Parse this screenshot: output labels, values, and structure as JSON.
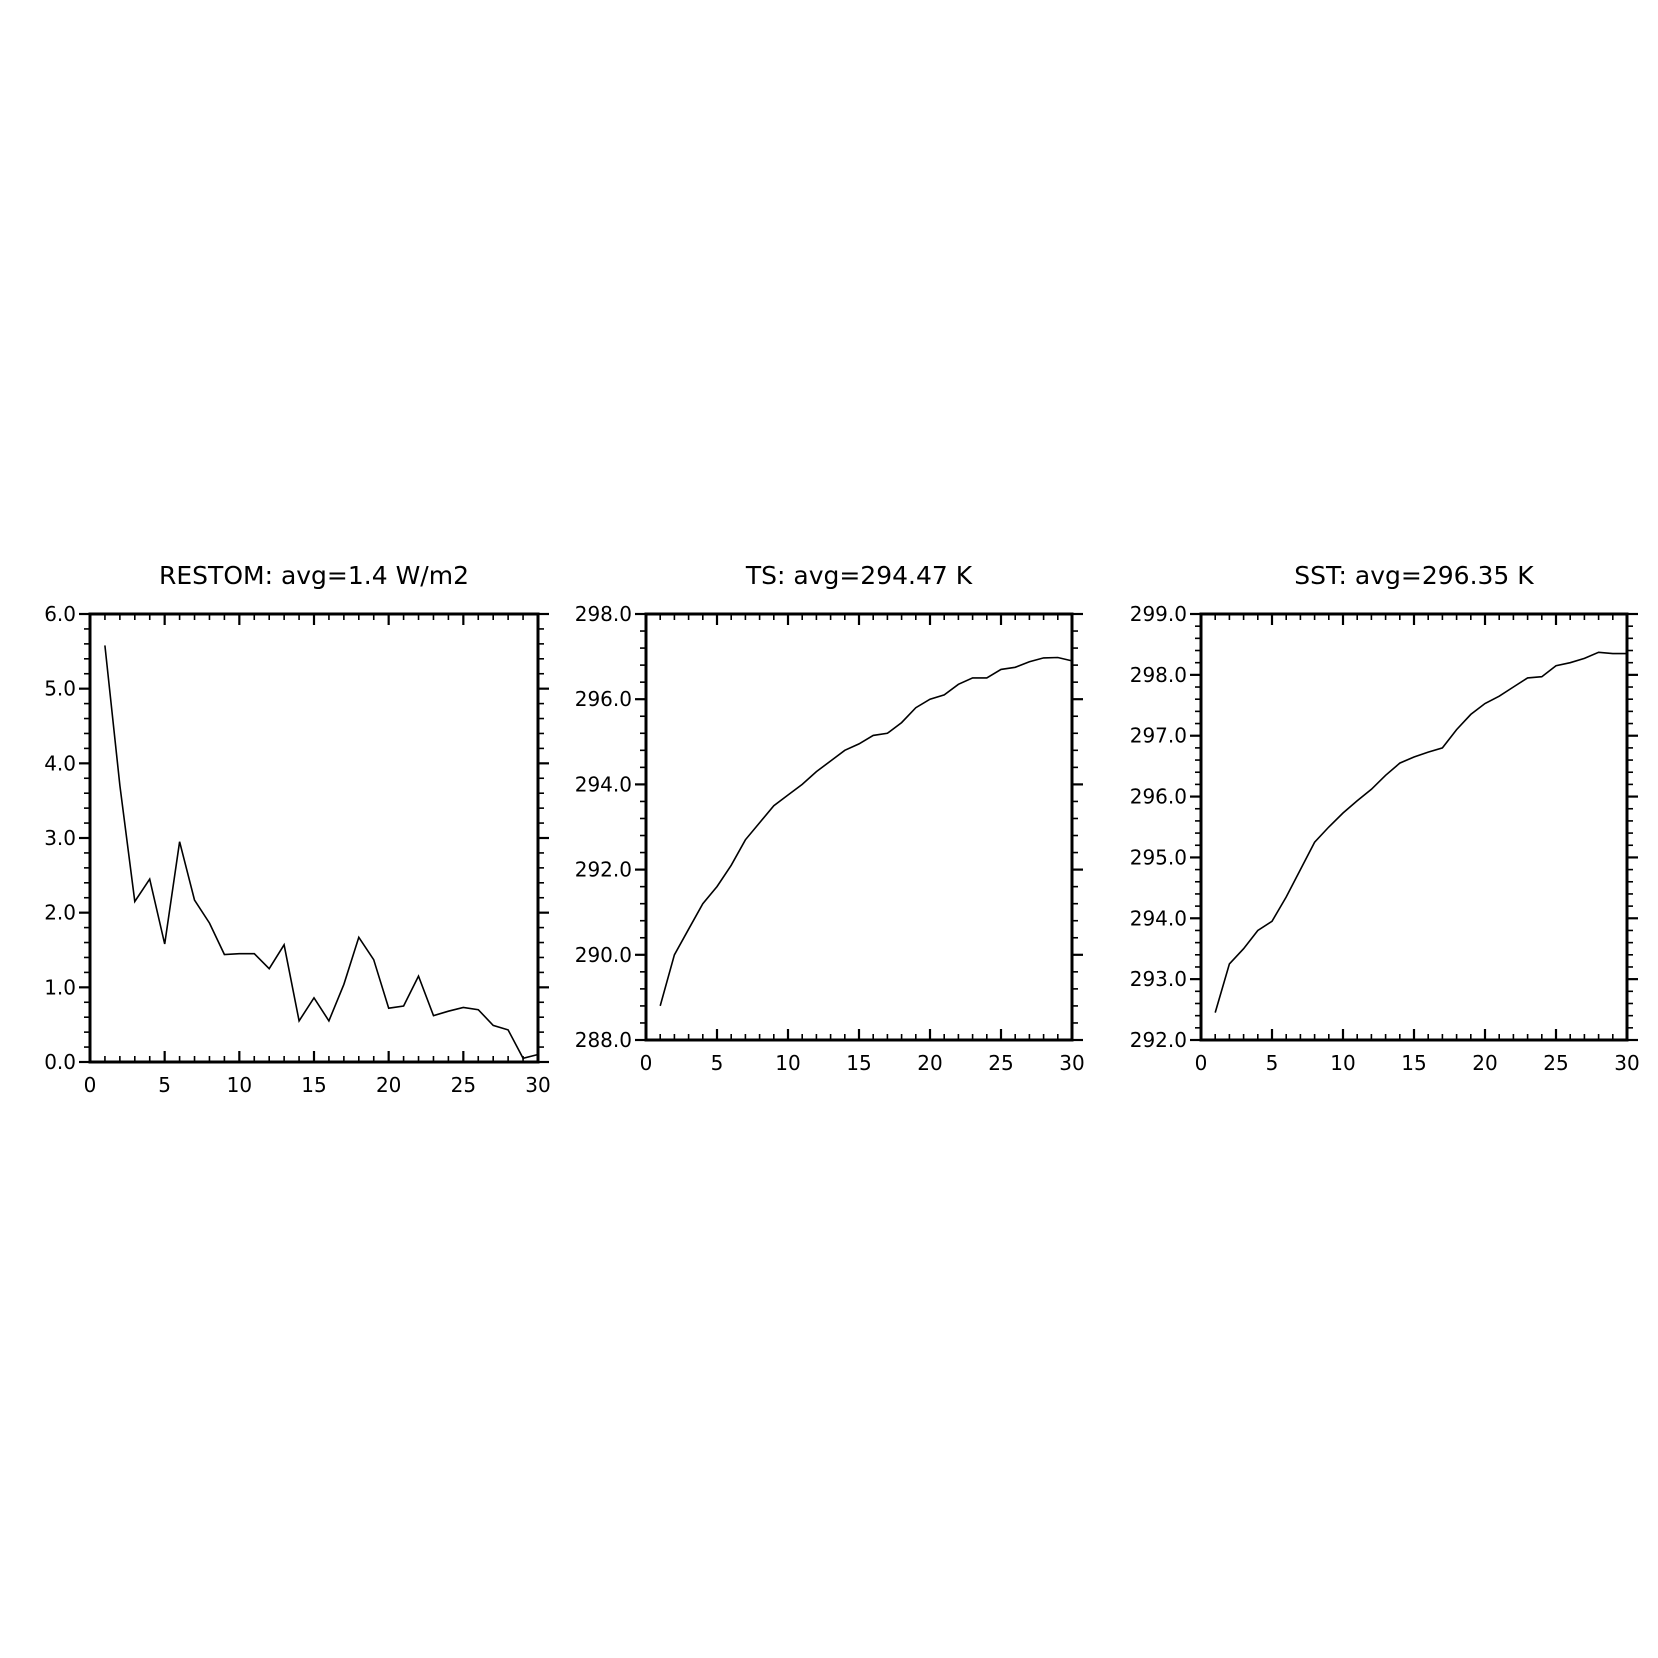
{
  "chart_data": [
    {
      "type": "line",
      "title": "RESTOM: avg=1.4 W/m2",
      "xlabel": "",
      "ylabel": "",
      "xlim": [
        0,
        30
      ],
      "ylim": [
        0.0,
        6.0
      ],
      "x_ticks": [
        "0",
        "5",
        "10",
        "15",
        "20",
        "25",
        "30"
      ],
      "y_ticks": [
        "0.0",
        "1.0",
        "2.0",
        "3.0",
        "4.0",
        "5.0",
        "6.0"
      ],
      "grid": false,
      "x": [
        1,
        2,
        3,
        4,
        5,
        6,
        7,
        8,
        9,
        10,
        11,
        12,
        13,
        14,
        15,
        16,
        17,
        18,
        19,
        20,
        21,
        22,
        23,
        24,
        25,
        26,
        27,
        28,
        29,
        30
      ],
      "values": [
        5.58,
        3.7,
        2.15,
        2.45,
        1.58,
        2.95,
        2.17,
        1.86,
        1.44,
        1.45,
        1.45,
        1.25,
        1.57,
        0.55,
        0.86,
        0.55,
        1.04,
        1.67,
        1.37,
        0.72,
        0.75,
        1.15,
        0.62,
        0.68,
        0.73,
        0.7,
        0.49,
        0.43,
        0.05,
        0.1
      ]
    },
    {
      "type": "line",
      "title": "TS: avg=294.47 K",
      "xlabel": "",
      "ylabel": "",
      "xlim": [
        0,
        30
      ],
      "ylim": [
        288.0,
        298.0
      ],
      "x_ticks": [
        "0",
        "5",
        "10",
        "15",
        "20",
        "25",
        "30"
      ],
      "y_ticks": [
        "288.0",
        "290.0",
        "292.0",
        "294.0",
        "296.0",
        "298.0"
      ],
      "grid": false,
      "x": [
        1,
        2,
        3,
        4,
        5,
        6,
        7,
        8,
        9,
        10,
        11,
        12,
        13,
        14,
        15,
        16,
        17,
        18,
        19,
        20,
        21,
        22,
        23,
        24,
        25,
        26,
        27,
        28,
        29,
        30
      ],
      "values": [
        288.8,
        290.0,
        290.6,
        291.2,
        291.6,
        292.1,
        292.7,
        293.1,
        293.5,
        293.75,
        294.0,
        294.3,
        294.55,
        294.8,
        294.95,
        295.15,
        295.2,
        295.45,
        295.8,
        296.0,
        296.1,
        296.35,
        296.5,
        296.5,
        296.7,
        296.75,
        296.88,
        296.97,
        296.98,
        296.9
      ]
    },
    {
      "type": "line",
      "title": "SST: avg=296.35 K",
      "xlabel": "",
      "ylabel": "",
      "xlim": [
        0,
        30
      ],
      "ylim": [
        292.0,
        299.0
      ],
      "x_ticks": [
        "0",
        "5",
        "10",
        "15",
        "20",
        "25",
        "30"
      ],
      "y_ticks": [
        "292.0",
        "293.0",
        "294.0",
        "295.0",
        "296.0",
        "297.0",
        "298.0",
        "299.0"
      ],
      "grid": false,
      "x": [
        1,
        2,
        3,
        4,
        5,
        6,
        7,
        8,
        9,
        10,
        11,
        12,
        13,
        14,
        15,
        16,
        17,
        18,
        19,
        20,
        21,
        22,
        23,
        24,
        25,
        26,
        27,
        28,
        29,
        30
      ],
      "values": [
        292.45,
        293.25,
        293.5,
        293.8,
        293.95,
        294.35,
        294.8,
        295.25,
        295.5,
        295.73,
        295.93,
        296.12,
        296.35,
        296.55,
        296.65,
        296.73,
        296.8,
        297.1,
        297.35,
        297.53,
        297.65,
        297.8,
        297.95,
        297.97,
        298.15,
        298.2,
        298.27,
        298.37,
        298.35,
        298.35
      ]
    }
  ]
}
